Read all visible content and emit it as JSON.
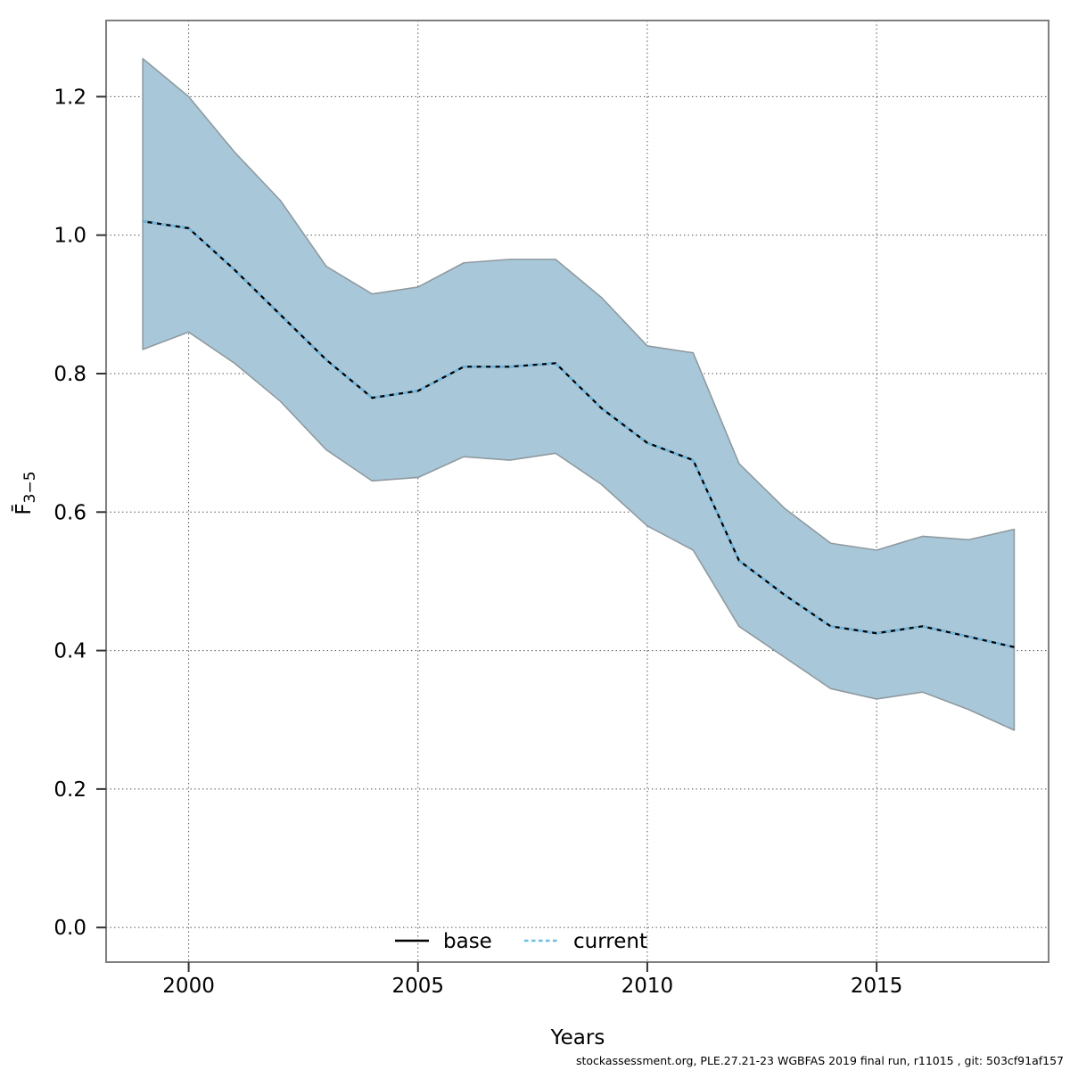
{
  "figure": {
    "xlabel": "Years",
    "ylabel_base": "F̄",
    "ylabel_sub": "3−5",
    "attribution": "stockassessment.org, PLE.27.21-23 WGBFAS 2019 final run, r11015 , git: 503cf91af157"
  },
  "legend": [
    {
      "label": "base",
      "style": "solid",
      "color": "#000000"
    },
    {
      "label": "current",
      "style": "dashed",
      "color": "#6bbde8"
    }
  ],
  "colors": {
    "band_fill": "#a8c8da",
    "band_edge": "#8f9a9f",
    "base_line": "#000000",
    "current_line": "#6bbde8",
    "frame": "#7f7f7f",
    "grid": "#4a4a4a",
    "tick": "#333333"
  },
  "chart_data": {
    "type": "line",
    "title": "",
    "xlabel": "Years",
    "ylabel": "Fbar(3-5)",
    "grid": true,
    "legend_position": "bottom-center",
    "xlim": [
      1998.2,
      2018.75
    ],
    "ylim": [
      -0.05,
      1.31
    ],
    "xticks": [
      2000,
      2005,
      2010,
      2015
    ],
    "yticks": [
      0.0,
      0.2,
      0.4,
      0.6,
      0.8,
      1.0,
      1.2
    ],
    "ytick_labels": [
      "0.0",
      "0.2",
      "0.4",
      "0.6",
      "0.8",
      "1.0",
      "1.2"
    ],
    "x": [
      1999,
      2000,
      2001,
      2002,
      2003,
      2004,
      2005,
      2006,
      2007,
      2008,
      2009,
      2010,
      2011,
      2012,
      2013,
      2014,
      2015,
      2016,
      2017,
      2018
    ],
    "series": [
      {
        "name": "base",
        "style": "solid",
        "color": "#000000",
        "values": [
          1.02,
          1.01,
          0.95,
          0.885,
          0.82,
          0.765,
          0.775,
          0.81,
          0.81,
          0.815,
          0.75,
          0.7,
          0.675,
          0.53,
          0.48,
          0.435,
          0.425,
          0.435,
          0.42,
          0.405
        ]
      },
      {
        "name": "current",
        "style": "dashed",
        "color": "#6bbde8",
        "values": [
          1.02,
          1.01,
          0.95,
          0.885,
          0.82,
          0.765,
          0.775,
          0.81,
          0.81,
          0.815,
          0.75,
          0.7,
          0.675,
          0.53,
          0.48,
          0.435,
          0.425,
          0.435,
          0.42,
          0.405
        ]
      }
    ],
    "band": {
      "name": "current-confidence-band",
      "lower": [
        0.835,
        0.86,
        0.815,
        0.76,
        0.69,
        0.645,
        0.65,
        0.68,
        0.675,
        0.685,
        0.64,
        0.58,
        0.545,
        0.435,
        0.39,
        0.345,
        0.33,
        0.34,
        0.315,
        0.285
      ],
      "upper": [
        1.255,
        1.2,
        1.12,
        1.05,
        0.955,
        0.915,
        0.925,
        0.96,
        0.965,
        0.965,
        0.91,
        0.84,
        0.83,
        0.67,
        0.605,
        0.555,
        0.545,
        0.565,
        0.56,
        0.575
      ]
    }
  }
}
